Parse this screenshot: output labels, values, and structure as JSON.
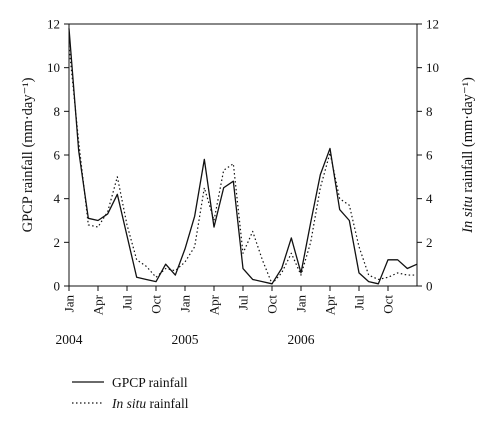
{
  "chart_data": {
    "type": "line",
    "title": "",
    "ylabel_left": "GPCP rainfall (mm·day⁻¹)",
    "ylabel_right_italic": "In situ",
    "ylabel_right_rest": " rainfall (mm·day⁻¹)",
    "ylim": [
      0,
      12
    ],
    "yticks": [
      "0",
      "2",
      "4",
      "6",
      "8",
      "10",
      "12"
    ],
    "xlim": [
      0,
      36
    ],
    "x_tick_labels": [
      "Jan",
      "Apr",
      "Jul",
      "Oct",
      "Jan",
      "Apr",
      "Jul",
      "Oct",
      "Jan",
      "Apr",
      "Jul",
      "Oct"
    ],
    "x_tick_positions": [
      0,
      3,
      6,
      9,
      12,
      15,
      18,
      21,
      24,
      27,
      30,
      33
    ],
    "year_labels": [
      "2004",
      "2005",
      "2006"
    ],
    "year_positions": [
      0,
      12,
      24
    ],
    "legend_position": "bottom-left",
    "series": [
      {
        "name": "GPCP rainfall",
        "legend_text": "GPCP rainfall",
        "legend_italic": "",
        "style": "solid",
        "x": [
          0,
          1,
          2,
          3,
          4,
          5,
          6,
          7,
          8,
          9,
          10,
          11,
          12,
          13,
          14,
          15,
          16,
          17,
          18,
          19,
          20,
          21,
          22,
          23,
          24,
          25,
          26,
          27,
          28,
          29,
          30,
          31,
          32,
          33,
          34,
          35,
          36
        ],
        "values": [
          11.8,
          6.2,
          3.1,
          3.0,
          3.3,
          4.2,
          2.3,
          0.4,
          0.3,
          0.2,
          1.0,
          0.5,
          1.7,
          3.2,
          5.8,
          2.7,
          4.5,
          4.8,
          0.8,
          0.3,
          0.2,
          0.1,
          0.8,
          2.2,
          0.6,
          2.9,
          5.1,
          6.3,
          3.5,
          3.0,
          0.6,
          0.2,
          0.1,
          1.2,
          1.2,
          0.8,
          1.0
        ]
      },
      {
        "name": "In situ rainfall",
        "legend_text": " rainfall",
        "legend_italic": "In situ",
        "style": "dotted",
        "x": [
          0,
          1,
          2,
          3,
          4,
          5,
          6,
          7,
          8,
          9,
          10,
          11,
          12,
          13,
          14,
          15,
          16,
          17,
          18,
          19,
          20,
          21,
          22,
          23,
          24,
          25,
          26,
          27,
          28,
          29,
          30,
          31,
          32,
          33,
          34,
          35,
          36
        ],
        "values": [
          11.0,
          6.6,
          2.8,
          2.7,
          3.4,
          5.0,
          2.8,
          1.2,
          0.9,
          0.4,
          0.8,
          0.7,
          1.1,
          1.8,
          4.5,
          3.0,
          5.3,
          5.6,
          1.5,
          2.5,
          1.2,
          0.1,
          0.6,
          1.5,
          0.5,
          2.0,
          4.5,
          6.1,
          4.0,
          3.7,
          1.8,
          0.5,
          0.3,
          0.4,
          0.6,
          0.5,
          0.5
        ]
      }
    ]
  }
}
